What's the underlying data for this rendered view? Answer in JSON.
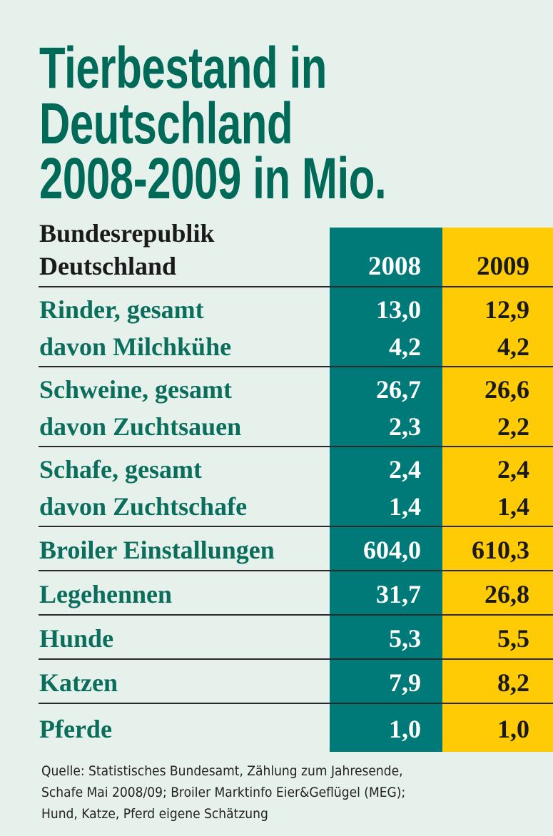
{
  "title": [
    "Tierbestand in",
    "Deutschland",
    "2008-2009 in Mio."
  ],
  "colors": {
    "title": "#006a58",
    "col2008": "#007a78",
    "col2009": "#ffcb05",
    "background": "#e7f1eb"
  },
  "chart_data": {
    "type": "table",
    "title": "Tierbestand in Deutschland 2008-2009 in Mio.",
    "header": {
      "label": [
        "Bundesrepublik",
        "Deutschland"
      ],
      "columns": [
        "2008",
        "2009"
      ]
    },
    "groups": [
      {
        "rows": [
          {
            "label": "Rinder, gesamt",
            "v2008": "13,0",
            "v2009": "12,9"
          },
          {
            "label": "davon Milchkühe",
            "v2008": "4,2",
            "v2009": "4,2"
          }
        ]
      },
      {
        "rows": [
          {
            "label": "Schweine, gesamt",
            "v2008": "26,7",
            "v2009": "26,6"
          },
          {
            "label": "davon Zuchtsauen",
            "v2008": "2,3",
            "v2009": "2,2"
          }
        ]
      },
      {
        "rows": [
          {
            "label": "Schafe, gesamt",
            "v2008": "2,4",
            "v2009": "2,4"
          },
          {
            "label": "davon Zuchtschafe",
            "v2008": "1,4",
            "v2009": "1,4"
          }
        ]
      },
      {
        "rows": [
          {
            "label": "Broiler Einstallungen",
            "v2008": "604,0",
            "v2009": "610,3"
          }
        ]
      },
      {
        "rows": [
          {
            "label": "Legehennen",
            "v2008": "31,7",
            "v2009": "26,8"
          }
        ]
      },
      {
        "rows": [
          {
            "label": "Hunde",
            "v2008": "5,3",
            "v2009": "5,5"
          }
        ]
      },
      {
        "rows": [
          {
            "label": "Katzen",
            "v2008": "7,9",
            "v2009": "8,2"
          }
        ]
      },
      {
        "rows": [
          {
            "label": "Pferde",
            "v2008": "1,0",
            "v2009": "1,0"
          }
        ]
      }
    ]
  },
  "footnote": [
    "Quelle: Statistisches Bundesamt, Zählung zum Jahresende,",
    "Schafe Mai 2008/09; Broiler Marktinfo Eier&Geflügel (MEG);",
    "Hund, Katze, Pferd eigene Schätzung"
  ]
}
